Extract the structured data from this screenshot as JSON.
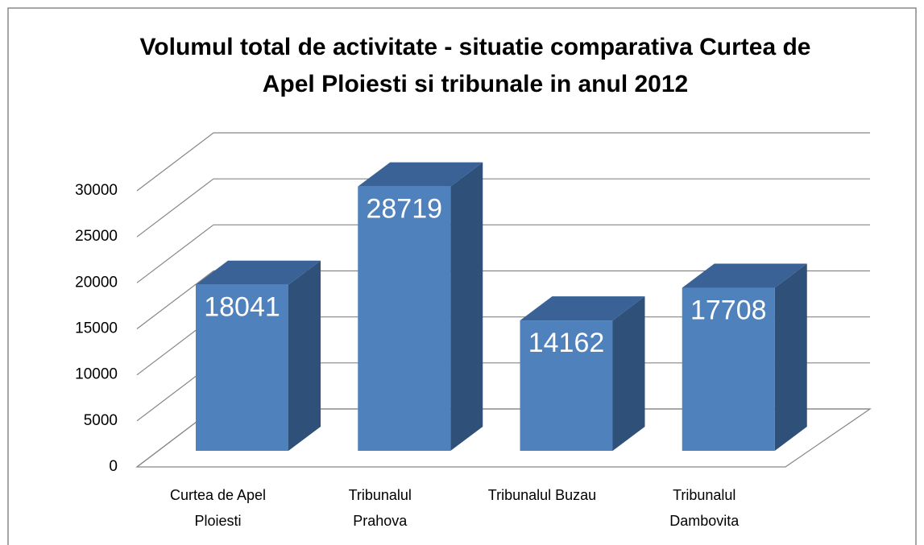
{
  "chart_data": {
    "type": "bar3d",
    "title": "Volumul total de activitate - situatie comparativa Curtea de Apel Ploiesti si tribunale in anul 2012",
    "categories": [
      "Curtea de Apel Ploiesti",
      "Tribunalul Prahova",
      "Tribunalul Buzau",
      "Tribunalul Dambovita"
    ],
    "values": [
      18041,
      28719,
      14162,
      17708
    ],
    "color": "#4f81bd",
    "ylim": [
      0,
      30000
    ],
    "yticks": [
      0,
      5000,
      10000,
      15000,
      20000,
      25000,
      30000
    ],
    "grid": true
  }
}
